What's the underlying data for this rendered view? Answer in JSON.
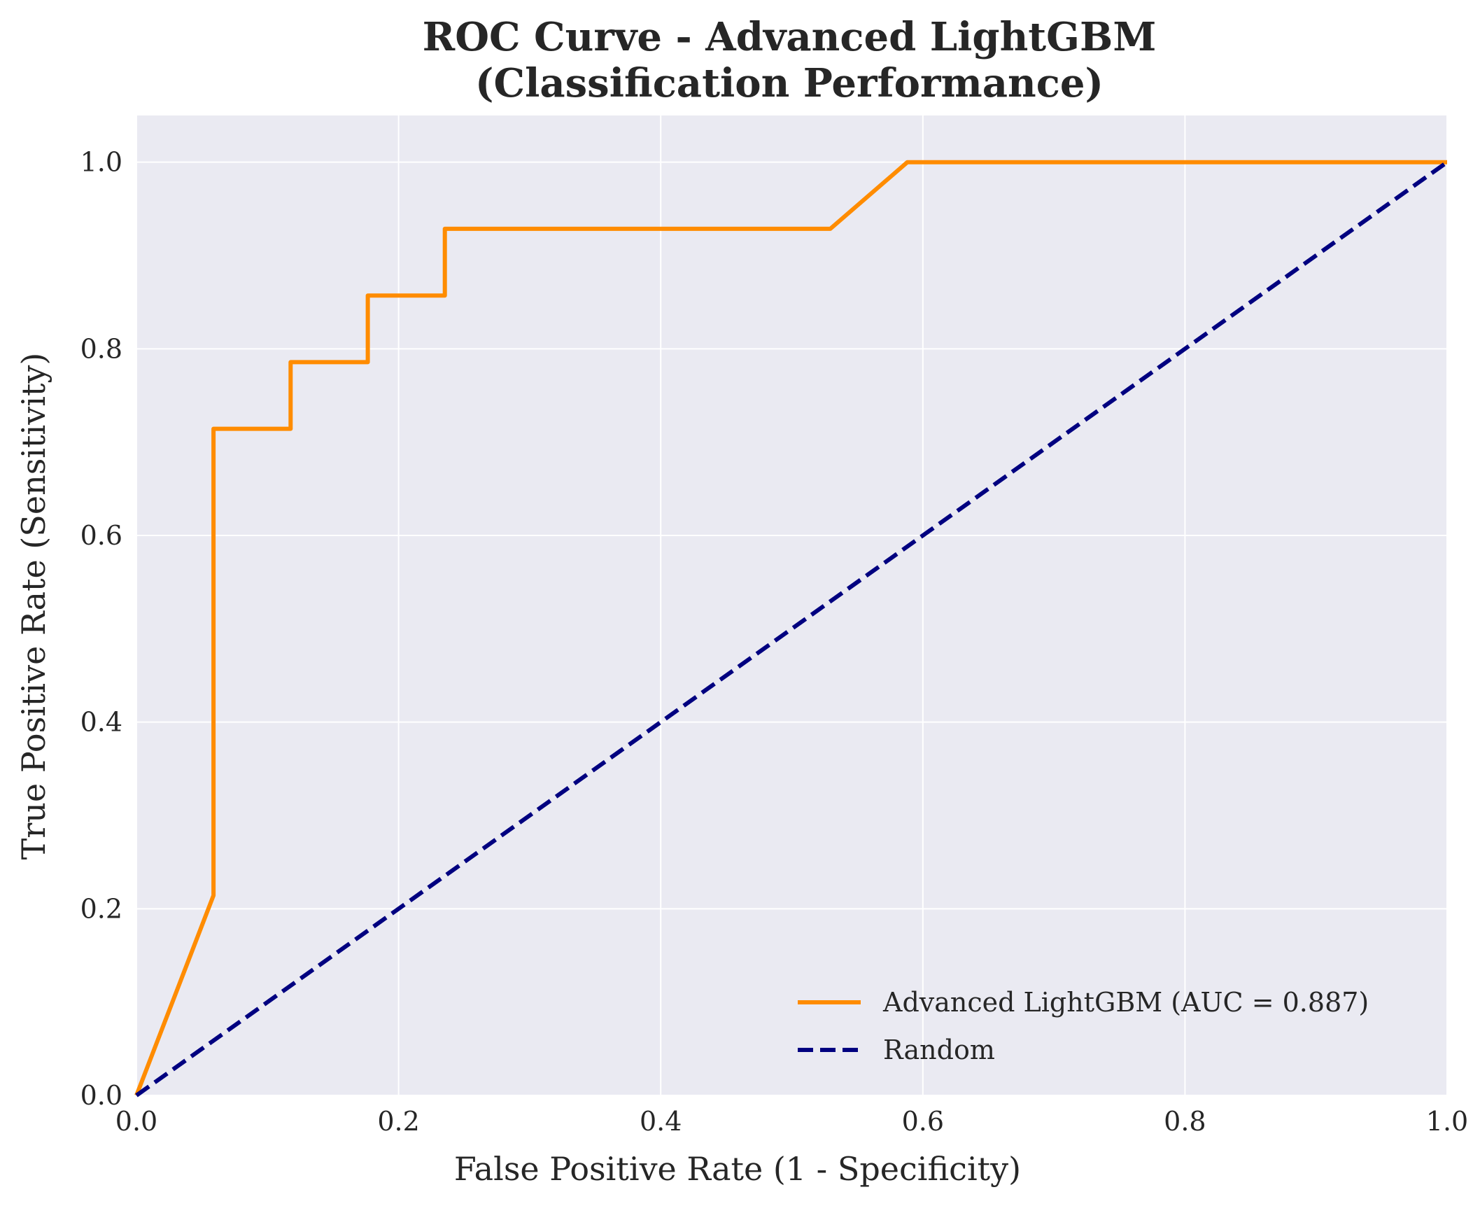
{
  "chart_data": {
    "type": "line",
    "title_line1": "ROC Curve - Advanced LightGBM",
    "title_line2": "(Classification Performance)",
    "xlabel": "False Positive Rate (1 - Specificity)",
    "ylabel": "True Positive Rate (Sensitivity)",
    "xlim": [
      0.0,
      1.0
    ],
    "ylim": [
      0.0,
      1.05
    ],
    "xticks": [
      "0.0",
      "0.2",
      "0.4",
      "0.6",
      "0.8",
      "1.0"
    ],
    "yticks": [
      "0.0",
      "0.2",
      "0.4",
      "0.6",
      "0.8",
      "1.0"
    ],
    "grid": true,
    "legend_position": "lower-right",
    "background_color": "#eaeaf2",
    "grid_color": "#ffffff",
    "series": [
      {
        "name": "Advanced LightGBM (AUC = 0.887)",
        "color": "#ff8c00",
        "style": "solid",
        "x": [
          0.0,
          0.0588,
          0.0588,
          0.1176,
          0.1176,
          0.1765,
          0.1765,
          0.2353,
          0.2353,
          0.5294,
          0.5882,
          1.0
        ],
        "y": [
          0.0,
          0.2143,
          0.7143,
          0.7143,
          0.7857,
          0.7857,
          0.8571,
          0.8571,
          0.9286,
          0.9286,
          1.0,
          1.0
        ]
      },
      {
        "name": "Random",
        "color": "#000080",
        "style": "dashed",
        "x": [
          0.0,
          1.0
        ],
        "y": [
          0.0,
          1.0
        ]
      }
    ]
  }
}
